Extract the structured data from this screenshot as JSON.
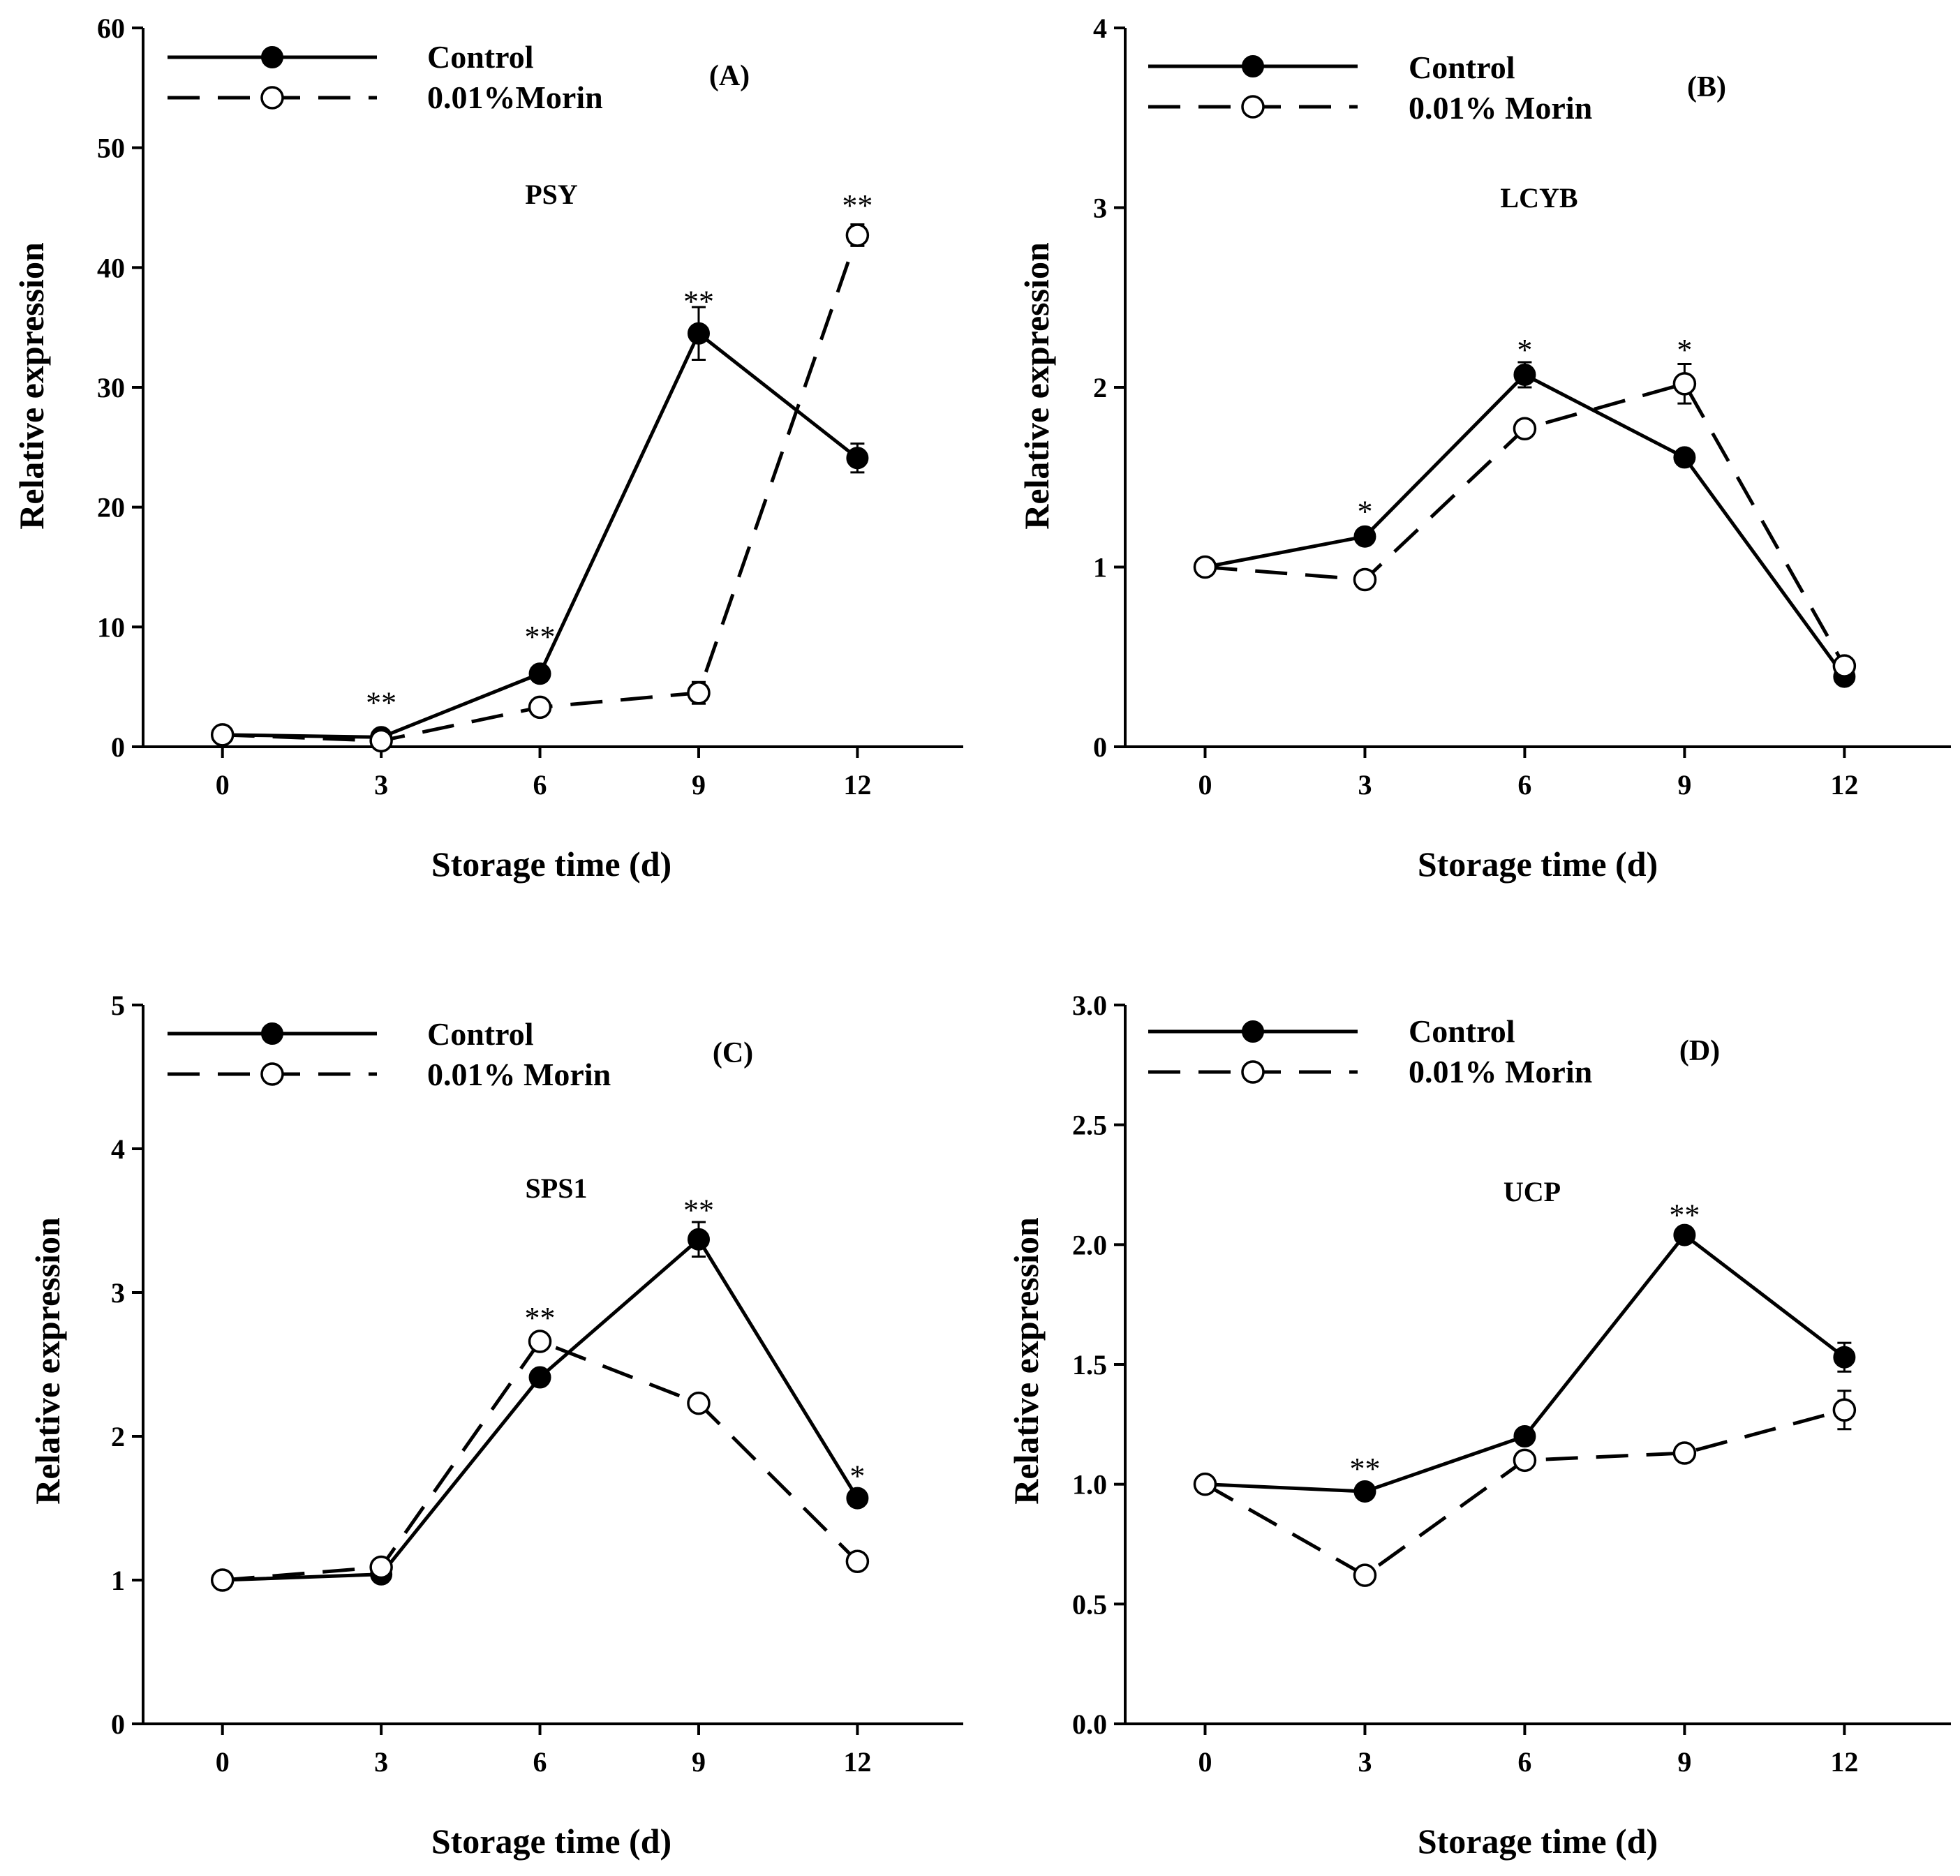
{
  "chart_data": [
    {
      "type": "line",
      "panel_label": "(A)",
      "title": "PSY",
      "xlabel": "Storage time (d)",
      "ylabel": "Relative expression",
      "x": [
        0,
        3,
        6,
        9,
        12
      ],
      "xticks": [
        "0",
        "3",
        "6",
        "9",
        "12"
      ],
      "xlim": [
        -1.5,
        14
      ],
      "ylim": [
        0,
        60
      ],
      "yticks": [
        "0",
        "10",
        "20",
        "30",
        "40",
        "50",
        "60"
      ],
      "series": [
        {
          "name": "Control",
          "style": "solid-filled",
          "values": [
            1.0,
            0.8,
            6.1,
            34.5,
            24.1
          ],
          "errors": [
            0.3,
            0.3,
            0.5,
            2.2,
            1.2
          ]
        },
        {
          "name": "0.01%Morin",
          "style": "dashed-open",
          "values": [
            1.0,
            0.5,
            3.3,
            4.5,
            42.7
          ],
          "errors": [
            0.3,
            0.2,
            0.4,
            0.9,
            0.9
          ]
        }
      ],
      "significance": [
        {
          "x": 3,
          "y": 4,
          "label": "**"
        },
        {
          "x": 6,
          "y": 9.5,
          "label": "**"
        },
        {
          "x": 9,
          "y": 37.5,
          "label": "**"
        },
        {
          "x": 12,
          "y": 45.5,
          "label": "**"
        }
      ]
    },
    {
      "type": "line",
      "panel_label": "(B)",
      "title": "LCYB",
      "xlabel": "Storage time (d)",
      "ylabel": "Relative expression",
      "x": [
        0,
        3,
        6,
        9,
        12
      ],
      "xticks": [
        "0",
        "3",
        "6",
        "9",
        "12"
      ],
      "xlim": [
        -1.5,
        14
      ],
      "ylim": [
        0,
        4
      ],
      "yticks": [
        "0",
        "1",
        "2",
        "3",
        "4"
      ],
      "series": [
        {
          "name": "Control",
          "style": "solid-filled",
          "values": [
            1.0,
            1.17,
            2.07,
            1.61,
            0.39
          ],
          "errors": [
            0.02,
            0.03,
            0.07,
            0.03,
            0.02
          ]
        },
        {
          "name": "0.01% Morin",
          "style": "dashed-open",
          "values": [
            1.0,
            0.93,
            1.77,
            2.02,
            0.45
          ],
          "errors": [
            0.02,
            0.03,
            0.04,
            0.11,
            0.02
          ]
        }
      ],
      "significance": [
        {
          "x": 3,
          "y": 1.33,
          "label": "*"
        },
        {
          "x": 6,
          "y": 2.23,
          "label": "*"
        },
        {
          "x": 9,
          "y": 2.23,
          "label": "*"
        }
      ]
    },
    {
      "type": "line",
      "panel_label": "(C)",
      "title": "SPS1",
      "xlabel": "Storage time (d)",
      "ylabel": "Relative expression",
      "x": [
        0,
        3,
        6,
        9,
        12
      ],
      "xticks": [
        "0",
        "3",
        "6",
        "9",
        "12"
      ],
      "xlim": [
        -1.5,
        14
      ],
      "ylim": [
        0,
        5
      ],
      "yticks": [
        "0",
        "1",
        "2",
        "3",
        "4",
        "5"
      ],
      "series": [
        {
          "name": "Control",
          "style": "solid-filled",
          "values": [
            1.0,
            1.04,
            2.41,
            3.37,
            1.57
          ],
          "errors": [
            0.02,
            0.03,
            0.05,
            0.12,
            0.04
          ]
        },
        {
          "name": "0.01% Morin",
          "style": "dashed-open",
          "values": [
            1.0,
            1.09,
            2.66,
            2.23,
            1.13
          ],
          "errors": [
            0.02,
            0.03,
            0.04,
            0.04,
            0.03
          ]
        }
      ],
      "significance": [
        {
          "x": 6,
          "y": 2.85,
          "label": "**"
        },
        {
          "x": 9,
          "y": 3.6,
          "label": "**"
        },
        {
          "x": 12,
          "y": 1.75,
          "label": "*"
        }
      ]
    },
    {
      "type": "line",
      "panel_label": "(D)",
      "title": "UCP",
      "xlabel": "Storage time (d)",
      "ylabel": "Relative expression",
      "x": [
        0,
        3,
        6,
        9,
        12
      ],
      "xticks": [
        "0",
        "3",
        "6",
        "9",
        "12"
      ],
      "xlim": [
        -1.5,
        14
      ],
      "ylim": [
        0,
        3
      ],
      "yticks": [
        "0.0",
        "0.5",
        "1.0",
        "1.5",
        "2.0",
        "2.5",
        "3.0"
      ],
      "series": [
        {
          "name": "Control",
          "style": "solid-filled",
          "values": [
            1.0,
            0.97,
            1.2,
            2.04,
            1.53
          ],
          "errors": [
            0.01,
            0.03,
            0.02,
            0.02,
            0.06
          ]
        },
        {
          "name": "0.01% Morin",
          "style": "dashed-open",
          "values": [
            1.0,
            0.62,
            1.1,
            1.13,
            1.31
          ],
          "errors": [
            0.01,
            0.02,
            0.03,
            0.02,
            0.08
          ]
        }
      ],
      "significance": [
        {
          "x": 3,
          "y": 1.08,
          "label": "**"
        },
        {
          "x": 9,
          "y": 2.14,
          "label": "**"
        }
      ]
    }
  ]
}
